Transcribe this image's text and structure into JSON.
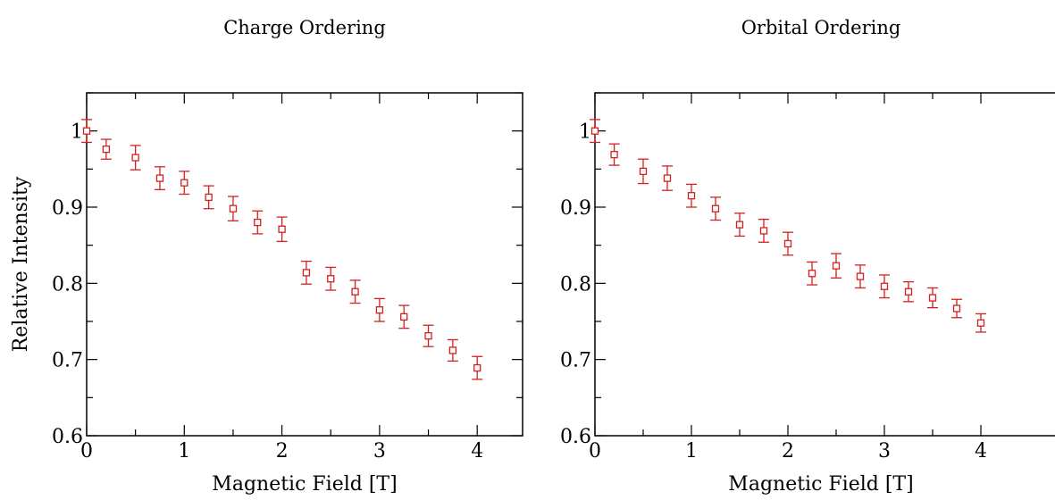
{
  "chart_data": [
    {
      "type": "scatter",
      "title": "Charge Ordering",
      "xlabel": "Magnetic Field [T]",
      "ylabel": "Relative Intensity",
      "xlim": [
        0,
        4.5
      ],
      "ylim": [
        0.6,
        1.05
      ],
      "xticks": [
        "0",
        "1",
        "2",
        "3",
        "4"
      ],
      "yticks": [
        "0.6",
        "0.7",
        "0.8",
        "0.9",
        "1"
      ],
      "marker_color": "#d42020",
      "x": [
        0,
        0.2,
        0.5,
        0.75,
        1.0,
        1.25,
        1.5,
        1.75,
        2.0,
        2.25,
        2.5,
        2.75,
        3.0,
        3.25,
        3.5,
        3.75,
        4.0
      ],
      "y": [
        1.0,
        0.976,
        0.965,
        0.938,
        0.932,
        0.913,
        0.898,
        0.88,
        0.871,
        0.814,
        0.806,
        0.789,
        0.765,
        0.756,
        0.731,
        0.712,
        0.689
      ],
      "error": [
        0.015,
        0.013,
        0.016,
        0.015,
        0.015,
        0.015,
        0.016,
        0.015,
        0.016,
        0.015,
        0.015,
        0.015,
        0.015,
        0.015,
        0.014,
        0.014,
        0.015
      ]
    },
    {
      "type": "scatter",
      "title": "Orbital Ordering",
      "xlabel": "Magnetic Field [T]",
      "ylabel": "",
      "xlim": [
        0,
        4.5
      ],
      "ylim": [
        0.6,
        1.05
      ],
      "xticks": [
        "0",
        "1",
        "2",
        "3",
        "4"
      ],
      "yticks": [
        "0.6",
        "0.7",
        "0.8",
        "0.9",
        "1"
      ],
      "marker_color": "#d42020",
      "x": [
        0,
        0.2,
        0.5,
        0.75,
        1.0,
        1.25,
        1.5,
        1.75,
        2.0,
        2.25,
        2.5,
        2.75,
        3.0,
        3.25,
        3.5,
        3.75,
        4.0
      ],
      "y": [
        1.0,
        0.969,
        0.947,
        0.938,
        0.915,
        0.898,
        0.877,
        0.869,
        0.852,
        0.813,
        0.823,
        0.809,
        0.796,
        0.789,
        0.781,
        0.767,
        0.748
      ],
      "error": [
        0.015,
        0.014,
        0.016,
        0.016,
        0.015,
        0.015,
        0.015,
        0.015,
        0.015,
        0.015,
        0.016,
        0.015,
        0.015,
        0.013,
        0.013,
        0.012,
        0.012
      ]
    }
  ]
}
